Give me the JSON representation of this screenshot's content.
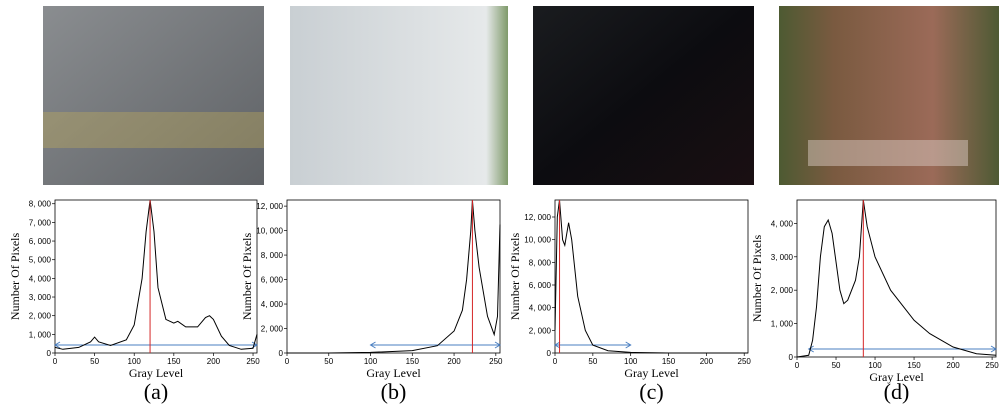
{
  "chart_data": [
    {
      "type": "line",
      "caption": "(a)",
      "x_label": "Gray Level",
      "y_label": "Number Of Pixels",
      "x": [
        0,
        10,
        30,
        45,
        50,
        55,
        70,
        90,
        100,
        110,
        115,
        120,
        125,
        130,
        140,
        150,
        155,
        165,
        180,
        190,
        195,
        200,
        210,
        220,
        235,
        250,
        255
      ],
      "values": [
        300,
        200,
        300,
        600,
        850,
        600,
        400,
        700,
        1500,
        4000,
        6500,
        8200,
        6500,
        3500,
        1800,
        1600,
        1700,
        1400,
        1400,
        1900,
        2000,
        1800,
        900,
        400,
        200,
        250,
        1000
      ],
      "color": "#000000",
      "peak": 120,
      "peak_color": "#d62728",
      "range": [
        0,
        255
      ],
      "range_color": "#4a7fc1",
      "xlim": [
        0,
        255
      ],
      "ylim": [
        0,
        8200
      ],
      "xticks": [
        0,
        50,
        100,
        150,
        200,
        250
      ],
      "yticks": [
        0,
        {
          "value": 1000,
          "label": "1, 000"
        },
        {
          "value": 2000,
          "label": "2, 000"
        },
        {
          "value": 3000,
          "label": "3, 000"
        },
        {
          "value": 4000,
          "label": "4, 000"
        },
        {
          "value": 5000,
          "label": "5, 000"
        },
        {
          "value": 6000,
          "label": "6, 000"
        },
        {
          "value": 7000,
          "label": "7, 000"
        },
        {
          "value": 8000,
          "label": "8, 000"
        }
      ]
    },
    {
      "type": "line",
      "caption": "(b)",
      "x_label": "Gray Level",
      "y_label": "Number Of Pixels",
      "x": [
        0,
        50,
        100,
        150,
        180,
        200,
        210,
        215,
        220,
        222,
        225,
        230,
        240,
        248,
        252,
        255
      ],
      "values": [
        0,
        0,
        50,
        200,
        600,
        1800,
        3500,
        6000,
        10000,
        12500,
        10000,
        7000,
        3000,
        1500,
        3000,
        10500
      ],
      "color": "#000000",
      "peak": 222,
      "peak_color": "#d62728",
      "range": [
        100,
        255
      ],
      "range_color": "#4a7fc1",
      "xlim": [
        0,
        255
      ],
      "ylim": [
        0,
        12500
      ],
      "xticks": [
        0,
        50,
        100,
        150,
        200,
        250
      ],
      "yticks": [
        0,
        {
          "value": 2000,
          "label": "2, 000"
        },
        {
          "value": 4000,
          "label": "4, 000"
        },
        {
          "value": 6000,
          "label": "6, 000"
        },
        {
          "value": 8000,
          "label": "8, 000"
        },
        {
          "value": 10000,
          "label": "10, 000"
        },
        {
          "value": 12000,
          "label": "12, 000"
        }
      ]
    },
    {
      "type": "line",
      "caption": "(c)",
      "x_label": "Gray Level",
      "y_label": "Number Of Pixels",
      "x": [
        0,
        3,
        6,
        10,
        13,
        18,
        22,
        30,
        40,
        50,
        70,
        100,
        150,
        255
      ],
      "values": [
        2000,
        12000,
        13500,
        10000,
        9500,
        11500,
        10000,
        5000,
        2000,
        700,
        200,
        50,
        0,
        0
      ],
      "color": "#000000",
      "peak": 6,
      "peak_color": "#d62728",
      "range": [
        0,
        100
      ],
      "range_color": "#4a7fc1",
      "xlim": [
        0,
        255
      ],
      "ylim": [
        0,
        13500
      ],
      "xticks": [
        0,
        50,
        100,
        150,
        200,
        250
      ],
      "yticks": [
        0,
        {
          "value": 2000,
          "label": "2, 000"
        },
        {
          "value": 4000,
          "label": "4, 000"
        },
        {
          "value": 6000,
          "label": "6, 000"
        },
        {
          "value": 8000,
          "label": "8, 000"
        },
        {
          "value": 10000,
          "label": "10, 000"
        },
        {
          "value": 12000,
          "label": "12, 000"
        }
      ]
    },
    {
      "type": "line",
      "caption": "(d)",
      "x_label": "Gray Level",
      "y_label": "Number Of Pixels",
      "x": [
        0,
        15,
        20,
        25,
        30,
        35,
        40,
        45,
        55,
        60,
        65,
        75,
        80,
        85,
        90,
        100,
        120,
        150,
        170,
        200,
        230,
        255
      ],
      "values": [
        0,
        50,
        500,
        1500,
        3000,
        3900,
        4100,
        3700,
        2000,
        1600,
        1700,
        2300,
        3000,
        4700,
        3900,
        3000,
        2000,
        1100,
        700,
        300,
        100,
        50
      ],
      "color": "#000000",
      "peak": 85,
      "peak_color": "#d62728",
      "range": [
        15,
        255
      ],
      "range_color": "#4a7fc1",
      "xlim": [
        0,
        255
      ],
      "ylim": [
        0,
        4700
      ],
      "xticks": [
        0,
        50,
        100,
        150,
        200,
        250
      ],
      "yticks": [
        0,
        {
          "value": 1000,
          "label": "1, 000"
        },
        {
          "value": 2000,
          "label": "2, 000"
        },
        {
          "value": 3000,
          "label": "3, 000"
        },
        {
          "value": 4000,
          "label": "4, 000"
        }
      ]
    }
  ]
}
